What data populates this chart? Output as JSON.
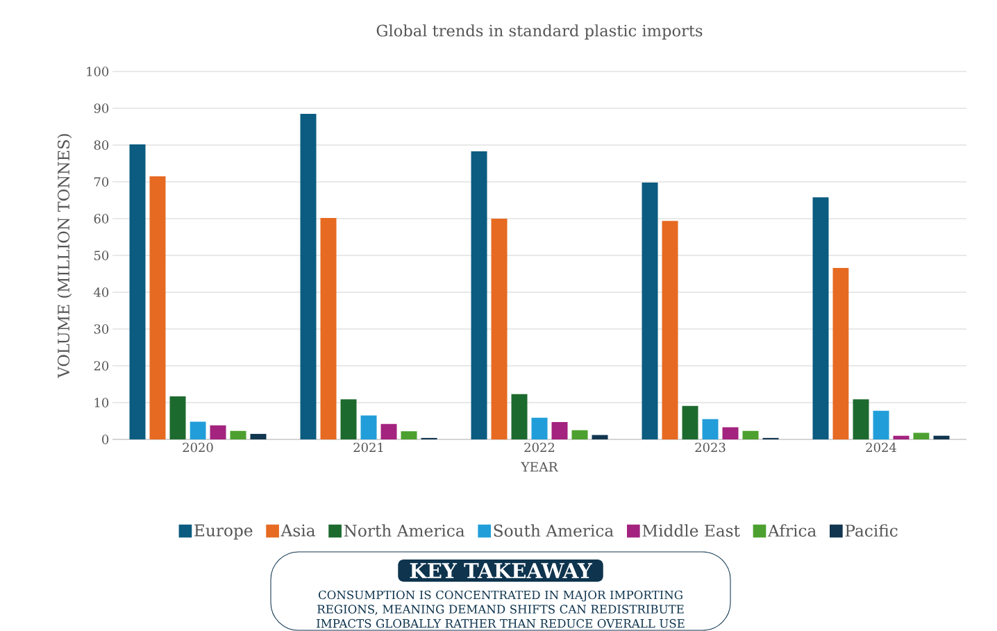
{
  "chart_data": {
    "type": "bar",
    "title": "Global trends in standard plastic imports",
    "xlabel": "YEAR",
    "ylabel": "VOLUME (MILLION TONNES)",
    "categories": [
      "2020",
      "2021",
      "2022",
      "2023",
      "2024"
    ],
    "series": [
      {
        "name": "Europe",
        "color": "#0b5c80",
        "values": [
          80.2,
          88.5,
          78.3,
          69.8,
          65.8
        ]
      },
      {
        "name": "Asia",
        "color": "#e66a22",
        "values": [
          71.5,
          60.2,
          60.0,
          59.4,
          46.6
        ]
      },
      {
        "name": "North America",
        "color": "#1d6a2f",
        "values": [
          11.7,
          10.9,
          12.3,
          9.1,
          10.9
        ]
      },
      {
        "name": "South America",
        "color": "#219ed9",
        "values": [
          4.8,
          6.5,
          5.9,
          5.5,
          7.8
        ]
      },
      {
        "name": "Middle East",
        "color": "#a3237f",
        "values": [
          3.8,
          4.2,
          4.7,
          3.3,
          1.0
        ]
      },
      {
        "name": "Africa",
        "color": "#4ca02f",
        "values": [
          2.3,
          2.2,
          2.5,
          2.3,
          1.8
        ]
      },
      {
        "name": "Pacific",
        "color": "#12364f",
        "values": [
          1.5,
          0.4,
          1.2,
          0.4,
          1.0
        ]
      }
    ],
    "ylim": [
      0,
      100
    ],
    "yticks": [
      0,
      10,
      20,
      30,
      40,
      50,
      60,
      70,
      80,
      90,
      100
    ],
    "grid": "y",
    "legend": "bottom",
    "annotations": [
      "KEY TAKEAWAY",
      "CONSUMPTION IS CONCENTRATED IN MAJOR IMPORTING REGIONS, MEANING DEMAND SHIFTS CAN REDISTRIBUTE IMPACTS GLOBALLY RATHER THAN REDUCE OVERALL USE"
    ]
  }
}
